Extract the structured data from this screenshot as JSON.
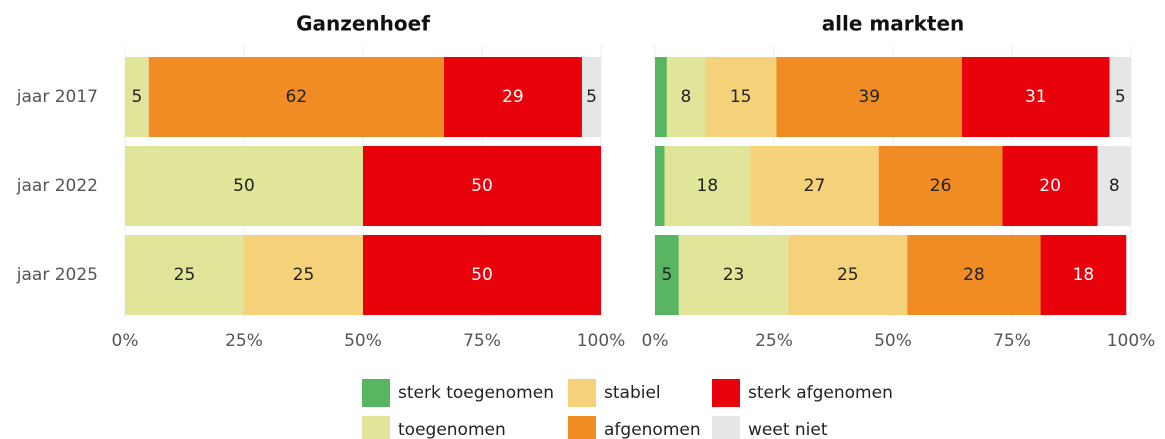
{
  "chart_data": [
    {
      "type": "stacked-bar-horizontal",
      "title": "Ganzenhoef",
      "categories": [
        "jaar 2017",
        "jaar 2022",
        "jaar 2025"
      ],
      "xlim": [
        0,
        100
      ],
      "xticks": [
        {
          "value": 0,
          "label": "0%"
        },
        {
          "value": 25,
          "label": "25%"
        },
        {
          "value": 50,
          "label": "50%"
        },
        {
          "value": 75,
          "label": "75%"
        },
        {
          "value": 100,
          "label": "100%"
        }
      ],
      "grid": true,
      "series": [
        {
          "name": "sterk toegenomen",
          "color": "#58b561",
          "label_color": "#222222",
          "values": [
            0,
            0,
            0
          ],
          "value_labels": [
            null,
            null,
            null
          ]
        },
        {
          "name": "toegenomen",
          "color": "#e1e599",
          "label_color": "#222222",
          "values": [
            5,
            50,
            25
          ],
          "value_labels": [
            "5",
            "50",
            "25"
          ]
        },
        {
          "name": "stabiel",
          "color": "#f5d27a",
          "label_color": "#222222",
          "values": [
            0,
            0,
            25
          ],
          "value_labels": [
            null,
            null,
            "25"
          ]
        },
        {
          "name": "afgenomen",
          "color": "#f08c24",
          "label_color": "#222222",
          "values": [
            62,
            0,
            0
          ],
          "value_labels": [
            "62",
            null,
            null
          ]
        },
        {
          "name": "sterk afgenomen",
          "color": "#e8000b",
          "label_color": "#ffffff",
          "values": [
            29,
            50,
            50
          ],
          "value_labels": [
            "29",
            "50",
            "50"
          ]
        },
        {
          "name": "weet niet",
          "color": "#e6e6e6",
          "label_color": "#222222",
          "values": [
            5,
            0,
            0
          ],
          "value_labels": [
            "5",
            null,
            null
          ]
        }
      ]
    },
    {
      "type": "stacked-bar-horizontal",
      "title": "alle markten",
      "xlim": [
        0,
        100
      ],
      "xticks": [
        {
          "value": 0,
          "label": "0%"
        },
        {
          "value": 25,
          "label": "25%"
        },
        {
          "value": 50,
          "label": "50%"
        },
        {
          "value": 75,
          "label": "75%"
        },
        {
          "value": 100,
          "label": "100%"
        }
      ],
      "grid": true,
      "series": [
        {
          "name": "sterk toegenomen",
          "color": "#58b561",
          "label_color": "#222222",
          "values": [
            2.5,
            2,
            5
          ],
          "value_labels": [
            null,
            null,
            "5"
          ]
        },
        {
          "name": "toegenomen",
          "color": "#e1e599",
          "label_color": "#222222",
          "values": [
            8,
            18,
            23
          ],
          "value_labels": [
            "8",
            "18",
            "23"
          ]
        },
        {
          "name": "stabiel",
          "color": "#f5d27a",
          "label_color": "#222222",
          "values": [
            15,
            27,
            25
          ],
          "value_labels": [
            "15",
            "27",
            "25"
          ]
        },
        {
          "name": "afgenomen",
          "color": "#f08c24",
          "label_color": "#222222",
          "values": [
            39,
            26,
            28
          ],
          "value_labels": [
            "39",
            "26",
            "28"
          ]
        },
        {
          "name": "sterk afgenomen",
          "color": "#e8000b",
          "label_color": "#ffffff",
          "values": [
            31,
            20,
            18
          ],
          "value_labels": [
            "31",
            "20",
            "18"
          ]
        },
        {
          "name": "weet niet",
          "color": "#e6e6e6",
          "label_color": "#222222",
          "values": [
            5,
            8,
            0
          ],
          "value_labels": [
            "5",
            "8",
            null
          ]
        }
      ]
    }
  ]
}
